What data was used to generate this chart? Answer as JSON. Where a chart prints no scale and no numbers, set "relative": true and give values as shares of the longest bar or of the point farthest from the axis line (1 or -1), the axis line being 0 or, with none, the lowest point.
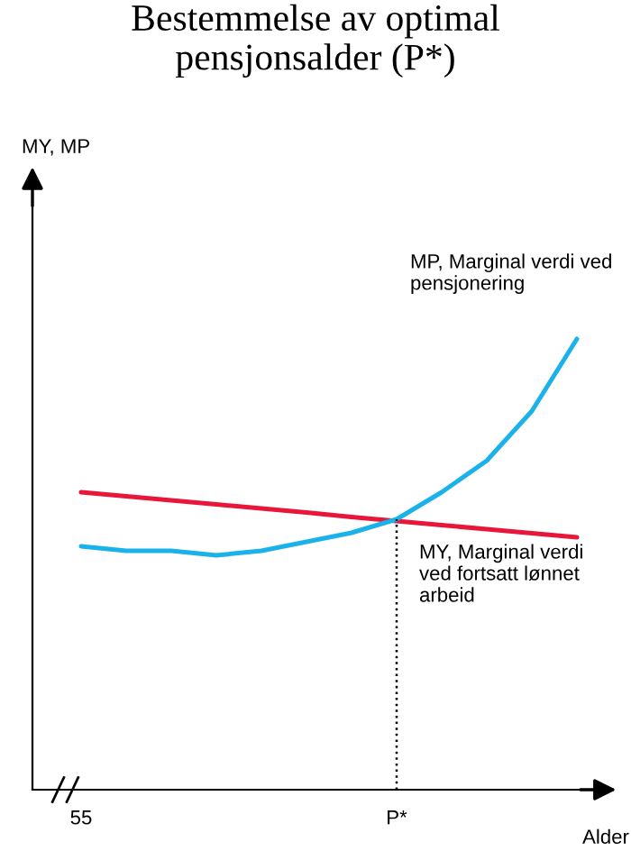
{
  "chart_data": {
    "type": "line",
    "title": "Bestemmelse av optimal\npensjonsalder (P*)",
    "annotations": [
      "MY, MP"
    ],
    "xlabel": "Alder",
    "relative": true,
    "categories": [
      "55",
      null,
      null,
      null,
      null,
      null,
      null,
      "P*",
      null,
      null,
      null,
      null
    ],
    "series": [
      {
        "name": "MY, Marginal verdi\nved fortsatt lønnet\narbeid",
        "color": "#e8173a",
        "values": [
          0.66,
          0.651,
          0.642,
          0.633,
          0.624,
          0.615,
          0.605,
          0.596,
          0.587,
          0.578,
          0.569,
          0.56
        ]
      },
      {
        "name": "MP, Marginal verdi ved\npensjonering",
        "color": "#1ab2e8",
        "values": [
          0.54,
          0.53,
          0.53,
          0.52,
          0.53,
          0.55,
          0.57,
          0.6,
          0.66,
          0.73,
          0.84,
          1.0
        ]
      }
    ],
    "ref_lines": [
      {
        "axis": "x",
        "value": "P*",
        "line_style": "dotted",
        "color": "#000000"
      }
    ],
    "grid": false,
    "legend": false,
    "line_style": "solid",
    "marker": "none"
  }
}
